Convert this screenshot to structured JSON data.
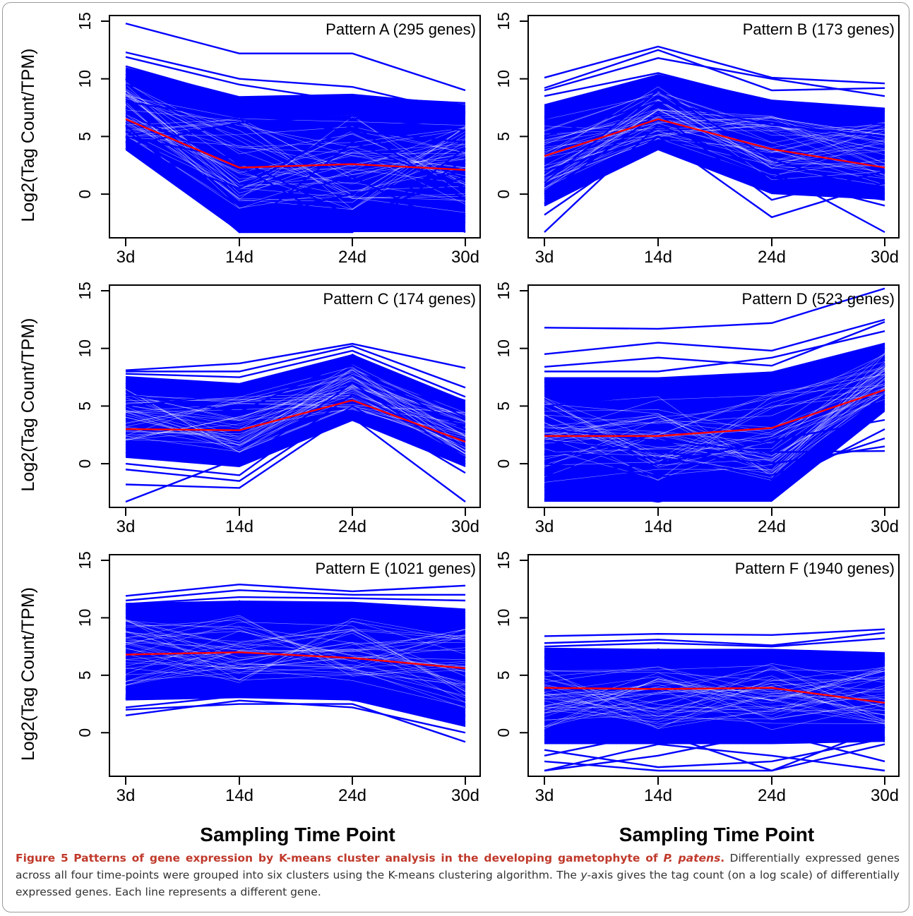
{
  "figure": {
    "caption": {
      "label": "Figure 5",
      "title_text": "Patterns of gene expression by K-means cluster analysis in the developing gametophyte of ",
      "title_species": "P. patens",
      "title_end": ".",
      "body_1": " Differentially expressed genes across all four time-points were grouped into six clusters using the K-means clustering algorithm. The ",
      "body_axis": "y",
      "body_2": "-axis gives the tag count (on a log scale) of differentially expressed genes. Each line represents a different gene."
    }
  },
  "colors": {
    "gene_lines": "#0000ff",
    "mean_line": "#ff0000",
    "axes": "#000000"
  },
  "chart_data": [
    {
      "type": "line",
      "title": "Pattern A (295 genes)",
      "x": [
        "3d",
        "14d",
        "24d",
        "30d"
      ],
      "xlabel": "",
      "ylabel": "Log2(Tag Count/TPM)",
      "ylim": [
        -3.3,
        15
      ],
      "yticks": [
        0,
        5,
        10,
        15
      ],
      "series": [
        {
          "role": "mean",
          "values": [
            6.5,
            2.3,
            2.6,
            2.1
          ]
        },
        {
          "role": "band-upper",
          "values": [
            11.0,
            8.5,
            8.7,
            7.8
          ]
        },
        {
          "role": "band-lower",
          "values": [
            3.8,
            -3.3,
            -3.3,
            -3.3
          ]
        },
        {
          "role": "gene",
          "values": [
            14.8,
            12.2,
            12.2,
            9.0
          ]
        },
        {
          "role": "gene",
          "values": [
            12.3,
            10.0,
            9.3,
            7.0
          ]
        },
        {
          "role": "gene",
          "values": [
            11.9,
            9.5,
            8.0,
            6.9
          ]
        },
        {
          "role": "gene",
          "values": [
            11.1,
            8.3,
            8.4,
            7.9
          ]
        },
        {
          "role": "gene",
          "values": [
            9.5,
            7.4,
            6.5,
            7.5
          ]
        },
        {
          "role": "gene",
          "values": [
            8.0,
            6.5,
            5.5,
            4.5
          ]
        },
        {
          "role": "gene",
          "values": [
            7.0,
            2.5,
            -3.3,
            3.0
          ]
        },
        {
          "role": "gene",
          "values": [
            6.0,
            -3.3,
            4.5,
            0.5
          ]
        },
        {
          "role": "gene",
          "values": [
            5.5,
            -1.0,
            1.5,
            -3.3
          ]
        },
        {
          "role": "gene",
          "values": [
            5.0,
            3.0,
            -2.0,
            1.5
          ]
        },
        {
          "role": "gene",
          "values": [
            4.5,
            -2.0,
            0.0,
            2.0
          ]
        },
        {
          "role": "gene",
          "values": [
            4.0,
            0.5,
            6.0,
            -0.5
          ]
        },
        {
          "role": "gene",
          "values": [
            4.2,
            6.2,
            6.8,
            5.5
          ]
        },
        {
          "role": "gene",
          "values": [
            5.0,
            -3.3,
            -3.3,
            4.0
          ]
        }
      ]
    },
    {
      "type": "line",
      "title": "Pattern B (173 genes)",
      "x": [
        "3d",
        "14d",
        "24d",
        "30d"
      ],
      "xlabel": "",
      "ylabel": "",
      "ylim": [
        -3.3,
        15
      ],
      "yticks": [
        0,
        5,
        10,
        15
      ],
      "series": [
        {
          "role": "mean",
          "values": [
            3.3,
            6.5,
            3.9,
            2.3
          ]
        },
        {
          "role": "band-upper",
          "values": [
            7.8,
            10.4,
            8.2,
            7.5
          ]
        },
        {
          "role": "band-lower",
          "values": [
            -1.0,
            3.8,
            0.0,
            -0.5
          ]
        },
        {
          "role": "gene",
          "values": [
            10.1,
            12.8,
            10.1,
            9.6
          ]
        },
        {
          "role": "gene",
          "values": [
            9.2,
            12.5,
            9.0,
            9.2
          ]
        },
        {
          "role": "gene",
          "values": [
            9.0,
            11.8,
            10.0,
            8.5
          ]
        },
        {
          "role": "gene",
          "values": [
            8.5,
            10.5,
            8.0,
            7.0
          ]
        },
        {
          "role": "gene",
          "values": [
            -3.3,
            6.0,
            2.0,
            -3.3
          ]
        },
        {
          "role": "gene",
          "values": [
            -1.8,
            5.0,
            -2.0,
            1.0
          ]
        },
        {
          "role": "gene",
          "values": [
            -1.0,
            4.0,
            1.0,
            -0.5
          ]
        },
        {
          "role": "gene",
          "values": [
            0.0,
            7.0,
            -0.5,
            2.0
          ]
        },
        {
          "role": "gene",
          "values": [
            1.0,
            9.0,
            3.0,
            0.0
          ]
        },
        {
          "role": "gene",
          "values": [
            2.0,
            5.0,
            1.5,
            -1.0
          ]
        },
        {
          "role": "gene",
          "values": [
            5.0,
            8.0,
            6.0,
            5.0
          ]
        },
        {
          "role": "gene",
          "values": [
            6.5,
            9.5,
            7.0,
            6.0
          ]
        }
      ]
    },
    {
      "type": "line",
      "title": "Pattern C (174 genes)",
      "x": [
        "3d",
        "14d",
        "24d",
        "30d"
      ],
      "xlabel": "",
      "ylabel": "Log2(Tag Count/TPM)",
      "ylim": [
        -3.3,
        15
      ],
      "yticks": [
        0,
        5,
        10,
        15
      ],
      "series": [
        {
          "role": "mean",
          "values": [
            3.0,
            2.9,
            5.5,
            1.9
          ]
        },
        {
          "role": "band-upper",
          "values": [
            7.6,
            7.0,
            9.5,
            5.5
          ]
        },
        {
          "role": "band-lower",
          "values": [
            0.5,
            -0.3,
            3.7,
            -0.3
          ]
        },
        {
          "role": "gene",
          "values": [
            8.1,
            8.7,
            10.4,
            8.3
          ]
        },
        {
          "role": "gene",
          "values": [
            8.0,
            8.0,
            10.2,
            6.6
          ]
        },
        {
          "role": "gene",
          "values": [
            7.8,
            7.5,
            9.8,
            5.8
          ]
        },
        {
          "role": "gene",
          "values": [
            -3.3,
            0.5,
            4.0,
            -3.3
          ]
        },
        {
          "role": "gene",
          "values": [
            -1.8,
            -2.1,
            4.5,
            0.0
          ]
        },
        {
          "role": "gene",
          "values": [
            -0.5,
            -1.5,
            5.0,
            -0.8
          ]
        },
        {
          "role": "gene",
          "values": [
            0.0,
            -1.0,
            6.0,
            1.5
          ]
        },
        {
          "role": "gene",
          "values": [
            1.0,
            0.0,
            7.0,
            0.5
          ]
        },
        {
          "role": "gene",
          "values": [
            5.0,
            6.0,
            8.5,
            3.0
          ]
        },
        {
          "role": "gene",
          "values": [
            6.0,
            4.5,
            9.0,
            4.0
          ]
        }
      ]
    },
    {
      "type": "line",
      "title": "Pattern D (523 genes)",
      "x": [
        "3d",
        "14d",
        "24d",
        "30d"
      ],
      "xlabel": "",
      "ylabel": "",
      "ylim": [
        -3.3,
        15
      ],
      "yticks": [
        0,
        5,
        10,
        15
      ],
      "series": [
        {
          "role": "mean",
          "values": [
            2.4,
            2.4,
            3.1,
            6.4
          ]
        },
        {
          "role": "band-upper",
          "values": [
            7.5,
            7.5,
            8.0,
            10.5
          ]
        },
        {
          "role": "band-lower",
          "values": [
            -3.3,
            -3.3,
            -3.3,
            4.5
          ]
        },
        {
          "role": "gene",
          "values": [
            11.8,
            11.7,
            12.2,
            15.2
          ]
        },
        {
          "role": "gene",
          "values": [
            9.5,
            10.5,
            9.8,
            12.5
          ]
        },
        {
          "role": "gene",
          "values": [
            8.4,
            9.2,
            8.5,
            12.3
          ]
        },
        {
          "role": "gene",
          "values": [
            8.0,
            8.0,
            9.2,
            11.5
          ]
        },
        {
          "role": "gene",
          "values": [
            3.0,
            2.0,
            1.0,
            1.1
          ]
        },
        {
          "role": "gene",
          "values": [
            2.0,
            1.0,
            0.0,
            1.5
          ]
        },
        {
          "role": "gene",
          "values": [
            1.0,
            0.5,
            -1.0,
            2.2
          ]
        },
        {
          "role": "gene",
          "values": [
            0.0,
            -1.0,
            -2.0,
            3.0
          ]
        },
        {
          "role": "gene",
          "values": [
            -1.0,
            0.0,
            2.0,
            3.8
          ]
        },
        {
          "role": "gene",
          "values": [
            -2.0,
            -3.3,
            -1.5,
            6.0
          ]
        },
        {
          "role": "gene",
          "values": [
            5.0,
            6.0,
            7.0,
            10.0
          ]
        }
      ]
    },
    {
      "type": "line",
      "title": "Pattern E (1021 genes)",
      "x": [
        "3d",
        "14d",
        "24d",
        "30d"
      ],
      "xlabel": "Sampling Time Point",
      "ylabel": "Log2(Tag Count/TPM)",
      "ylim": [
        -3.3,
        15
      ],
      "yticks": [
        0,
        5,
        10,
        15
      ],
      "series": [
        {
          "role": "mean",
          "values": [
            6.8,
            7.0,
            6.5,
            5.6
          ]
        },
        {
          "role": "band-upper",
          "values": [
            11.3,
            11.5,
            11.4,
            10.8
          ]
        },
        {
          "role": "band-lower",
          "values": [
            2.8,
            3.0,
            2.8,
            0.5
          ]
        },
        {
          "role": "gene",
          "values": [
            11.9,
            12.9,
            12.3,
            12.8
          ]
        },
        {
          "role": "gene",
          "values": [
            11.5,
            12.4,
            12.0,
            12.0
          ]
        },
        {
          "role": "gene",
          "values": [
            11.2,
            11.8,
            11.7,
            11.5
          ]
        },
        {
          "role": "gene",
          "values": [
            2.0,
            2.5,
            2.5,
            -0.8
          ]
        },
        {
          "role": "gene",
          "values": [
            1.5,
            2.8,
            2.2,
            0.0
          ]
        },
        {
          "role": "gene",
          "values": [
            2.2,
            3.2,
            3.0,
            0.8
          ]
        },
        {
          "role": "gene",
          "values": [
            3.0,
            3.5,
            3.3,
            1.5
          ]
        }
      ]
    },
    {
      "type": "line",
      "title": "Pattern F (1940 genes)",
      "x": [
        "3d",
        "14d",
        "24d",
        "30d"
      ],
      "xlabel": "Sampling Time Point",
      "ylabel": "",
      "ylim": [
        -3.3,
        15
      ],
      "yticks": [
        0,
        5,
        10,
        15
      ],
      "series": [
        {
          "role": "mean",
          "values": [
            3.9,
            3.8,
            3.9,
            2.6
          ]
        },
        {
          "role": "band-upper",
          "values": [
            7.4,
            7.3,
            7.3,
            7.0
          ]
        },
        {
          "role": "band-lower",
          "values": [
            -1.0,
            -1.0,
            -1.0,
            -0.8
          ]
        },
        {
          "role": "gene",
          "values": [
            8.4,
            8.6,
            8.5,
            9.0
          ]
        },
        {
          "role": "gene",
          "values": [
            7.8,
            8.1,
            7.6,
            8.7
          ]
        },
        {
          "role": "gene",
          "values": [
            7.5,
            7.8,
            7.5,
            8.2
          ]
        },
        {
          "role": "gene",
          "values": [
            -3.3,
            -1.0,
            -2.0,
            -3.3
          ]
        },
        {
          "role": "gene",
          "values": [
            -2.5,
            -3.3,
            -3.3,
            -1.0
          ]
        },
        {
          "role": "gene",
          "values": [
            -3.3,
            -2.0,
            0.0,
            -2.5
          ]
        },
        {
          "role": "gene",
          "values": [
            -1.5,
            -3.0,
            -2.5,
            -0.5
          ]
        },
        {
          "role": "gene",
          "values": [
            -2.0,
            0.0,
            -3.3,
            0.5
          ]
        }
      ]
    }
  ]
}
